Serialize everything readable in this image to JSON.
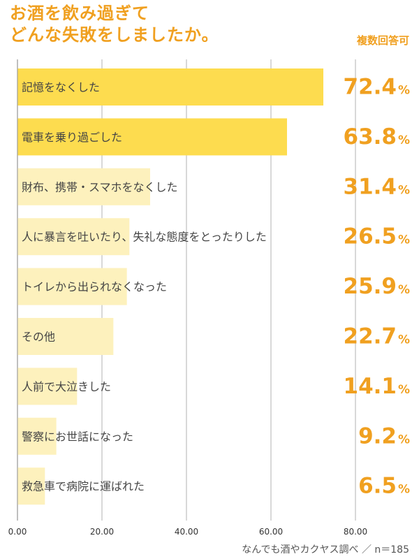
{
  "title_lines": [
    "お酒を飲み過ぎて",
    "どんな失敗をしましたか。"
  ],
  "note": "複数回答可",
  "source": "なんでも酒やカクヤス調べ ／ n＝185",
  "colors": {
    "accent": "#f0a020",
    "bar_strong": "#fddc4f",
    "bar_light": "#fdf1bd",
    "grid": "#cccccc",
    "label_text": "#444444"
  },
  "chart_data": {
    "type": "bar",
    "orientation": "horizontal",
    "title": "お酒を飲み過ぎて どんな失敗をしましたか。",
    "categories": [
      "記憶をなくした",
      "電車を乗り過ごした",
      "財布、携帯・スマホをなくした",
      "人に暴言を吐いたり、失礼な態度をとったりした",
      "トイレから出られなくなった",
      "その他",
      "人前で大泣きした",
      "警察にお世話になった",
      "救急車で病院に運ばれた"
    ],
    "values": [
      72.4,
      63.8,
      31.4,
      26.5,
      25.9,
      22.7,
      14.1,
      9.2,
      6.5
    ],
    "value_labels": [
      "72.4",
      "63.8",
      "31.4",
      "26.5",
      "25.9",
      "22.7",
      "14.1",
      "9.2",
      "6.5"
    ],
    "value_unit": "%",
    "highlighted_count": 2,
    "xlim": [
      0,
      85
    ],
    "xticks": [
      0,
      20,
      40,
      60,
      80
    ],
    "xtick_labels": [
      "0.00",
      "20.00",
      "40.00",
      "60.00",
      "80.00"
    ],
    "grid": true
  }
}
